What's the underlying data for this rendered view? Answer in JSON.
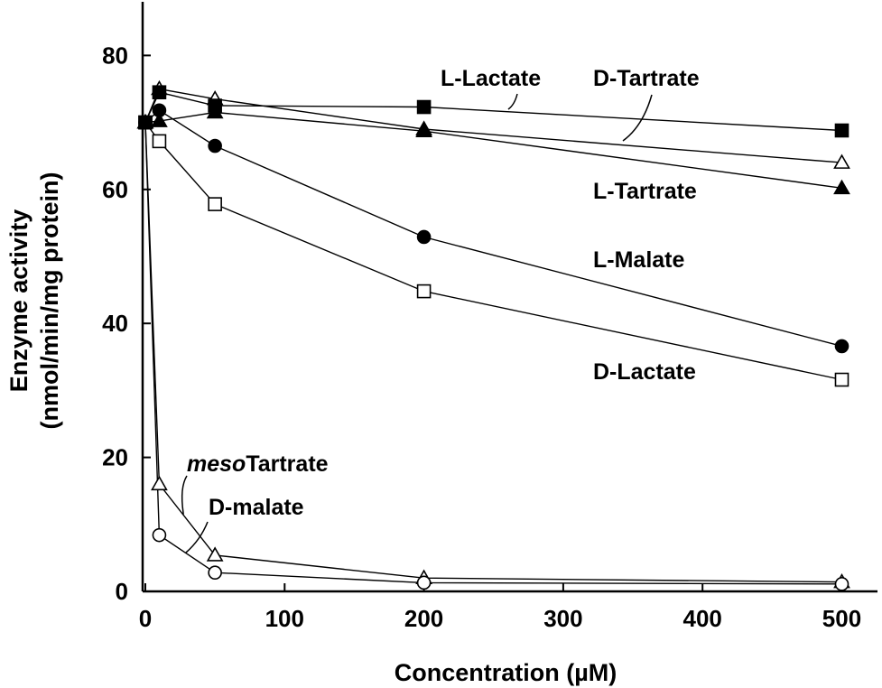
{
  "chart_data": {
    "type": "line",
    "title": "",
    "xlabel": "Concentration (µM)",
    "ylabel_line1": "Enzyme activity",
    "ylabel_line2": "(nmol/min/mg protein)",
    "xlim": [
      -5,
      530
    ],
    "ylim": [
      0,
      88
    ],
    "xticks": [
      "0",
      "100",
      "200",
      "300",
      "400",
      "500"
    ],
    "yticks": [
      "0",
      "20",
      "40",
      "60",
      "80"
    ],
    "grid": false,
    "x": [
      0,
      10,
      50,
      200,
      500
    ],
    "series": [
      {
        "name": "L-Lactate",
        "marker": "square-filled",
        "values": [
          70,
          74.5,
          72.5,
          72.3,
          68.8
        ]
      },
      {
        "name": "D-Tartrate",
        "marker": "triangle-open",
        "values": [
          70,
          75,
          73.5,
          69,
          64
        ]
      },
      {
        "name": "L-Tartrate",
        "marker": "triangle-filled",
        "values": [
          70,
          70.2,
          71.5,
          68.7,
          60.2
        ]
      },
      {
        "name": "L-Malate",
        "marker": "circle-filled",
        "values": [
          70,
          71.8,
          66.5,
          52.9,
          36.6
        ]
      },
      {
        "name": "D-Lactate",
        "marker": "square-open",
        "values": [
          70,
          67.2,
          57.8,
          44.8,
          31.6
        ]
      },
      {
        "name": "mesoTartrate",
        "name_prefix": "meso",
        "name_suffix": "Tartrate",
        "marker": "triangle-open",
        "values": [
          70,
          16,
          5.4,
          2,
          1.4
        ]
      },
      {
        "name": "D-malate",
        "marker": "circle-open",
        "values": [
          70,
          8.4,
          2.8,
          1.3,
          1.1
        ]
      }
    ]
  }
}
